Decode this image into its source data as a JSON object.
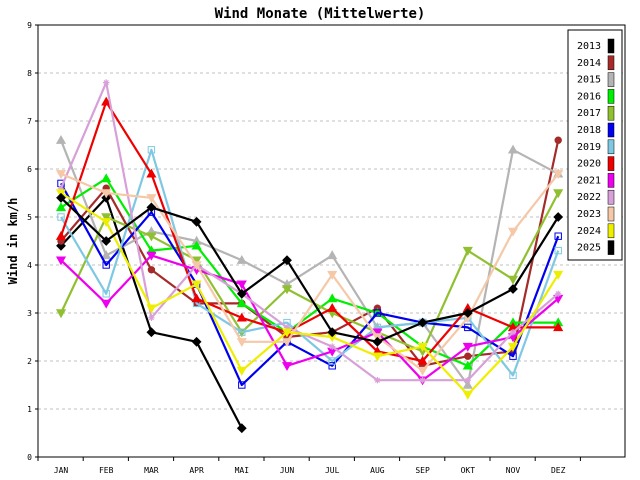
{
  "chart_data": {
    "type": "line",
    "title": "Wind Monate (Mittelwerte)",
    "xlabel": "",
    "ylabel": "Wind in km/h",
    "ylim": [
      0,
      9
    ],
    "yticks": [
      "0",
      "1",
      "2",
      "3",
      "4",
      "5",
      "6",
      "7",
      "8",
      "9"
    ],
    "categories": [
      "JAN",
      "FEB",
      "MAR",
      "APR",
      "MAI",
      "JUN",
      "JUL",
      "AUG",
      "SEP",
      "OKT",
      "NOV",
      "DEZ"
    ],
    "grid": true,
    "legend_position": "right",
    "series": [
      {
        "name": "2013",
        "color": "#000000",
        "marker": "diamond",
        "values": [
          4.4,
          5.4,
          2.6,
          2.4,
          0.6,
          null,
          null,
          null,
          null,
          null,
          null,
          null
        ]
      },
      {
        "name": "2014",
        "color": "#a52a2a",
        "marker": "circle",
        "values": [
          4.5,
          5.6,
          3.9,
          3.2,
          3.2,
          2.5,
          2.6,
          3.1,
          1.9,
          2.1,
          2.2,
          6.6
        ]
      },
      {
        "name": "2015",
        "color": "#b4b4b4",
        "marker": "triangle-up",
        "values": [
          6.6,
          4.2,
          4.7,
          4.5,
          4.1,
          3.6,
          4.2,
          2.7,
          2.8,
          1.5,
          6.4,
          5.9
        ]
      },
      {
        "name": "2016",
        "color": "#00ee00",
        "marker": "triangle-up",
        "values": [
          5.2,
          5.8,
          4.3,
          4.4,
          3.2,
          2.6,
          3.3,
          3.0,
          2.3,
          1.9,
          2.8,
          2.8
        ]
      },
      {
        "name": "2017",
        "color": "#90c030",
        "marker": "triangle-down",
        "values": [
          3.0,
          5.0,
          4.6,
          4.1,
          2.6,
          3.5,
          3.0,
          2.6,
          2.2,
          4.3,
          3.7,
          5.5
        ]
      },
      {
        "name": "2018",
        "color": "#0000ee",
        "marker": "square",
        "values": [
          5.7,
          4.0,
          5.1,
          3.6,
          1.5,
          2.4,
          1.9,
          3.0,
          2.8,
          2.7,
          2.1,
          4.6
        ]
      },
      {
        "name": "2019",
        "color": "#7ec8e3",
        "marker": "square",
        "values": [
          5.0,
          3.4,
          6.4,
          3.2,
          2.6,
          2.8,
          2.0,
          2.7,
          2.8,
          2.9,
          1.7,
          4.3
        ]
      },
      {
        "name": "2020",
        "color": "#ee0000",
        "marker": "triangle-up",
        "values": [
          4.6,
          7.4,
          5.9,
          3.3,
          2.9,
          2.6,
          3.1,
          2.2,
          2.0,
          3.1,
          2.7,
          2.7
        ]
      },
      {
        "name": "2021",
        "color": "#ee00ee",
        "marker": "triangle-down",
        "values": [
          4.1,
          3.2,
          4.2,
          3.9,
          3.6,
          1.9,
          2.2,
          2.6,
          1.6,
          2.3,
          2.5,
          3.3
        ]
      },
      {
        "name": "2022",
        "color": "#d8a0d8",
        "marker": "star",
        "values": [
          5.6,
          7.8,
          2.9,
          4.0,
          3.4,
          2.7,
          2.3,
          1.6,
          1.6,
          1.6,
          2.6,
          3.4
        ]
      },
      {
        "name": "2023",
        "color": "#f5c8a8",
        "marker": "triangle-down",
        "values": [
          5.9,
          5.5,
          5.4,
          4.0,
          2.4,
          2.4,
          3.8,
          2.5,
          1.8,
          2.9,
          4.7,
          5.9
        ]
      },
      {
        "name": "2024",
        "color": "#eeee00",
        "marker": "triangle-down",
        "values": [
          5.5,
          4.9,
          3.1,
          3.6,
          1.8,
          2.6,
          2.5,
          2.1,
          2.3,
          1.3,
          2.3,
          3.8
        ]
      },
      {
        "name": "2025",
        "color": "#000000",
        "marker": "diamond",
        "values": [
          5.4,
          4.5,
          5.2,
          4.9,
          3.4,
          4.1,
          2.6,
          2.4,
          2.8,
          3.0,
          3.5,
          5.0
        ]
      }
    ]
  }
}
